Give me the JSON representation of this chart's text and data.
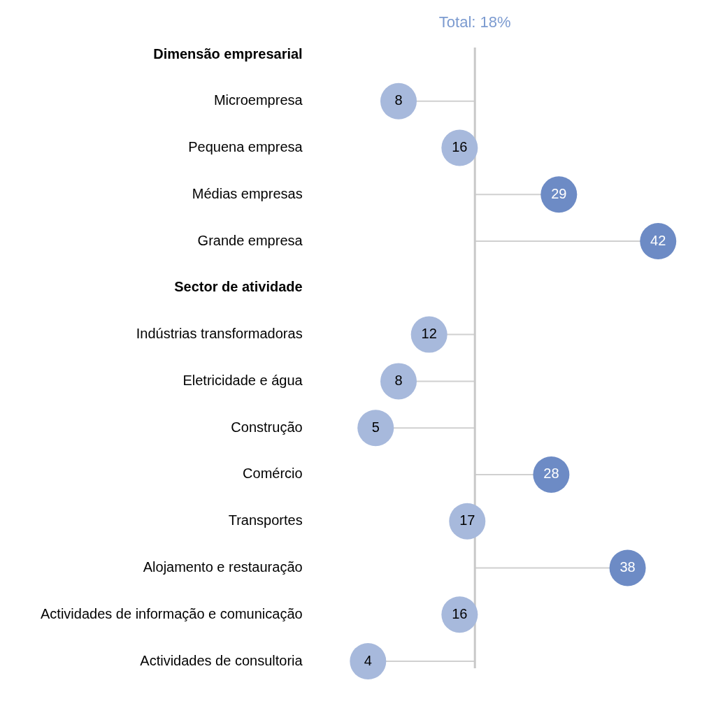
{
  "chart_data": {
    "type": "lollipop",
    "orientation": "horizontal",
    "categories": [
      "Dimensão empresarial",
      "Microempresa",
      "Pequena empresa",
      "Médias empresas",
      "Grande empresa",
      "Sector de atividade",
      "Indústrias transformadoras",
      "Eletricidade e água",
      "Construção",
      "Comércio",
      "Transportes",
      "Alojamento e restauração",
      "Actividades de informação e comunicação",
      "Actividades de consultoria"
    ],
    "values": [
      null,
      8,
      16,
      29,
      42,
      null,
      12,
      8,
      5,
      28,
      17,
      38,
      16,
      4
    ],
    "colors": [
      null,
      "#a7b9dc",
      "#a7b9dc",
      "#6d8bc5",
      "#6d8bc5",
      null,
      "#a7b9dc",
      "#a7b9dc",
      "#a7b9dc",
      "#6d8bc5",
      "#a7b9dc",
      "#6d8bc5",
      "#a7b9dc",
      "#a7b9dc"
    ],
    "tick_labels": "y",
    "grid": false,
    "legend": false,
    "marker": "circle",
    "data_labels": true,
    "ref_lines": [
      {
        "axis": "x",
        "value": 18,
        "label": "Total: 18%",
        "color": "#c8c8c8"
      }
    ]
  }
}
